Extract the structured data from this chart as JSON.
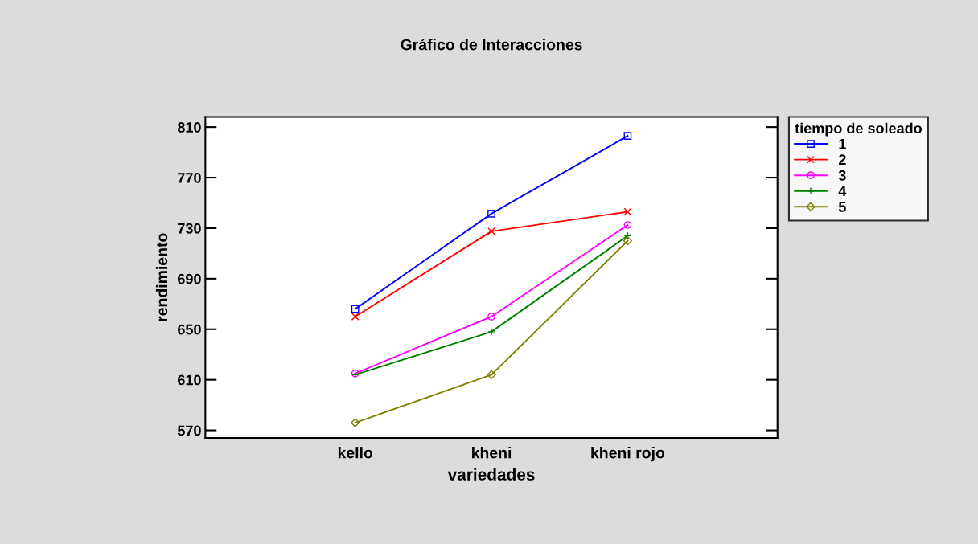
{
  "chart_data": {
    "type": "line",
    "title": "Gráfico de Interacciones",
    "xlabel": "variedades",
    "ylabel": "rendimiento",
    "legend_title": "tiempo de soleado",
    "categories": [
      "kello",
      "kheni",
      "kheni rojo"
    ],
    "series": [
      {
        "name": "1",
        "color": "#0000ff",
        "marker": "square",
        "values": [
          666,
          741.5,
          803
        ]
      },
      {
        "name": "2",
        "color": "#ff0000",
        "marker": "cross",
        "values": [
          660,
          727.5,
          743
        ]
      },
      {
        "name": "3",
        "color": "#ff00ff",
        "marker": "circle",
        "values": [
          615,
          660,
          732.5
        ]
      },
      {
        "name": "4",
        "color": "#008000",
        "marker": "plus",
        "values": [
          614,
          648,
          724
        ]
      },
      {
        "name": "5",
        "color": "#808000",
        "marker": "diamond",
        "values": [
          576,
          614,
          720
        ]
      }
    ],
    "ylim": [
      564,
      818
    ],
    "yticks": [
      570,
      610,
      650,
      690,
      730,
      770,
      810
    ],
    "grid": false,
    "legend": "right",
    "line_style": "solid"
  }
}
